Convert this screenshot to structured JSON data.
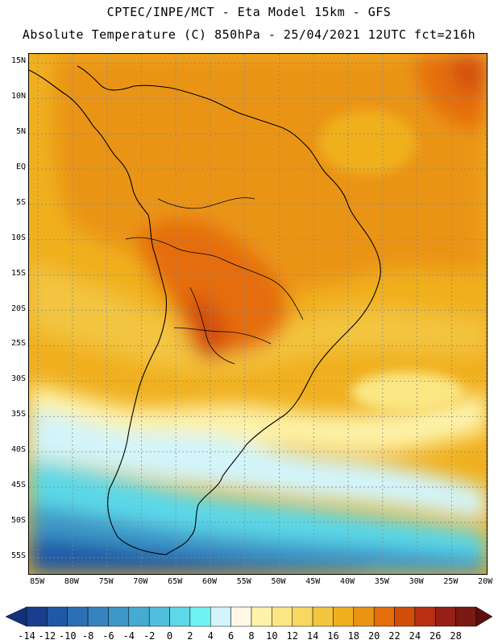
{
  "header": {
    "line1": "CPTEC/INPE/MCT -  Eta Model 15km - GFS",
    "line2": "Absolute Temperature (C) 850hPa - 25/04/2021 12UTC fct=216h"
  },
  "map": {
    "variable": "Absolute Temperature",
    "units": "C",
    "level": "850hPa",
    "lat_labels": [
      "15N",
      "10N",
      "5N",
      "EQ",
      "5S",
      "10S",
      "15S",
      "20S",
      "25S",
      "30S",
      "35S",
      "40S",
      "45S",
      "50S",
      "55S"
    ],
    "lon_labels": [
      "85W",
      "80W",
      "75W",
      "70W",
      "65W",
      "60W",
      "55W",
      "50W",
      "45W",
      "40W",
      "35W",
      "30W",
      "25W",
      "20W"
    ]
  },
  "legend": {
    "ticks": [
      "-14",
      "-12",
      "-10",
      "-8",
      "-6",
      "-4",
      "-2",
      "0",
      "2",
      "4",
      "6",
      "8",
      "10",
      "12",
      "14",
      "16",
      "18",
      "20",
      "22",
      "24",
      "26",
      "28"
    ],
    "colors": [
      "#1a3d8f",
      "#1f58a6",
      "#2b6fb5",
      "#3584c0",
      "#3d97c8",
      "#46aad1",
      "#50bfdd",
      "#5cd8e8",
      "#6ef2f4",
      "#d2f4fa",
      "#fff8e6",
      "#fdf2a8",
      "#fae784",
      "#f8d862",
      "#f3c440",
      "#f0b01f",
      "#ea9414",
      "#e56d0c",
      "#d34d0a",
      "#b83010",
      "#962015",
      "#7a1a12"
    ],
    "under_color": "#13327a",
    "over_color": "#5c0f0c"
  }
}
